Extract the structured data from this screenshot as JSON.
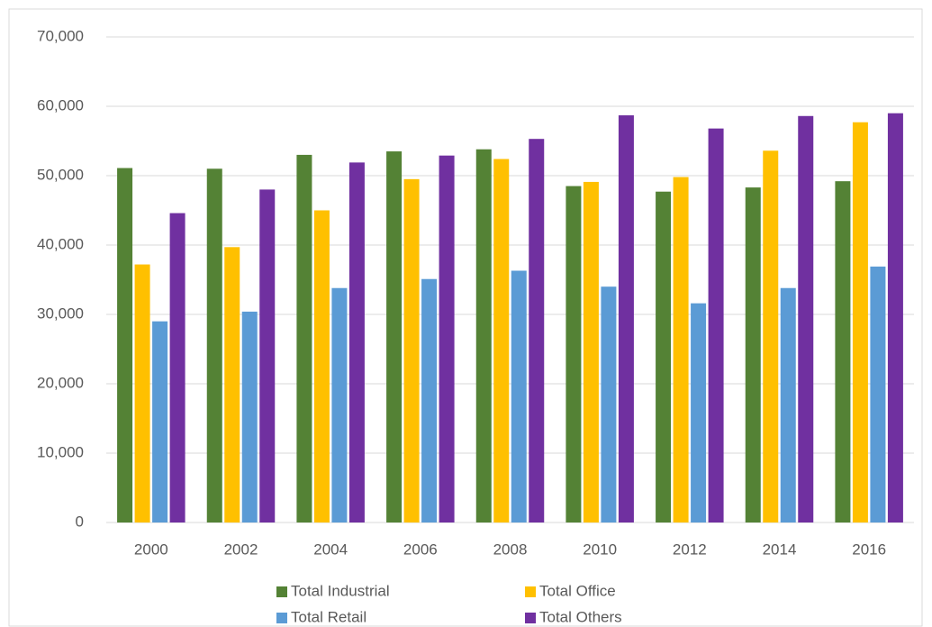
{
  "chart_data": {
    "type": "bar",
    "categories": [
      "2000",
      "2002",
      "2004",
      "2006",
      "2008",
      "2010",
      "2012",
      "2014",
      "2016"
    ],
    "series": [
      {
        "name": "Total Industrial",
        "color": "#548235",
        "values": [
          51100,
          51000,
          53000,
          53500,
          53800,
          48500,
          47700,
          48300,
          49200
        ]
      },
      {
        "name": "Total Office",
        "color": "#ffc000",
        "values": [
          37200,
          39700,
          45000,
          49500,
          52400,
          49100,
          49800,
          53600,
          57700
        ]
      },
      {
        "name": "Total Retail",
        "color": "#5b9bd5",
        "values": [
          29000,
          30400,
          33800,
          35100,
          36300,
          34000,
          31600,
          33800,
          36900
        ]
      },
      {
        "name": "Total Others",
        "color": "#7030a0",
        "values": [
          44600,
          48000,
          51900,
          52900,
          55300,
          58700,
          56800,
          58600,
          59000
        ]
      }
    ],
    "ylim": [
      0,
      70000
    ],
    "yticks": [
      0,
      {
        "value": 10000,
        "label": "10,000"
      },
      {
        "value": 20000,
        "label": "20,000"
      },
      {
        "value": 30000,
        "label": "30,000"
      },
      {
        "value": 40000,
        "label": "40,000"
      },
      {
        "value": 50000,
        "label": "50,000"
      },
      {
        "value": 60000,
        "label": "60,000"
      },
      {
        "value": 70000,
        "label": "70,000"
      }
    ],
    "grid": true
  }
}
